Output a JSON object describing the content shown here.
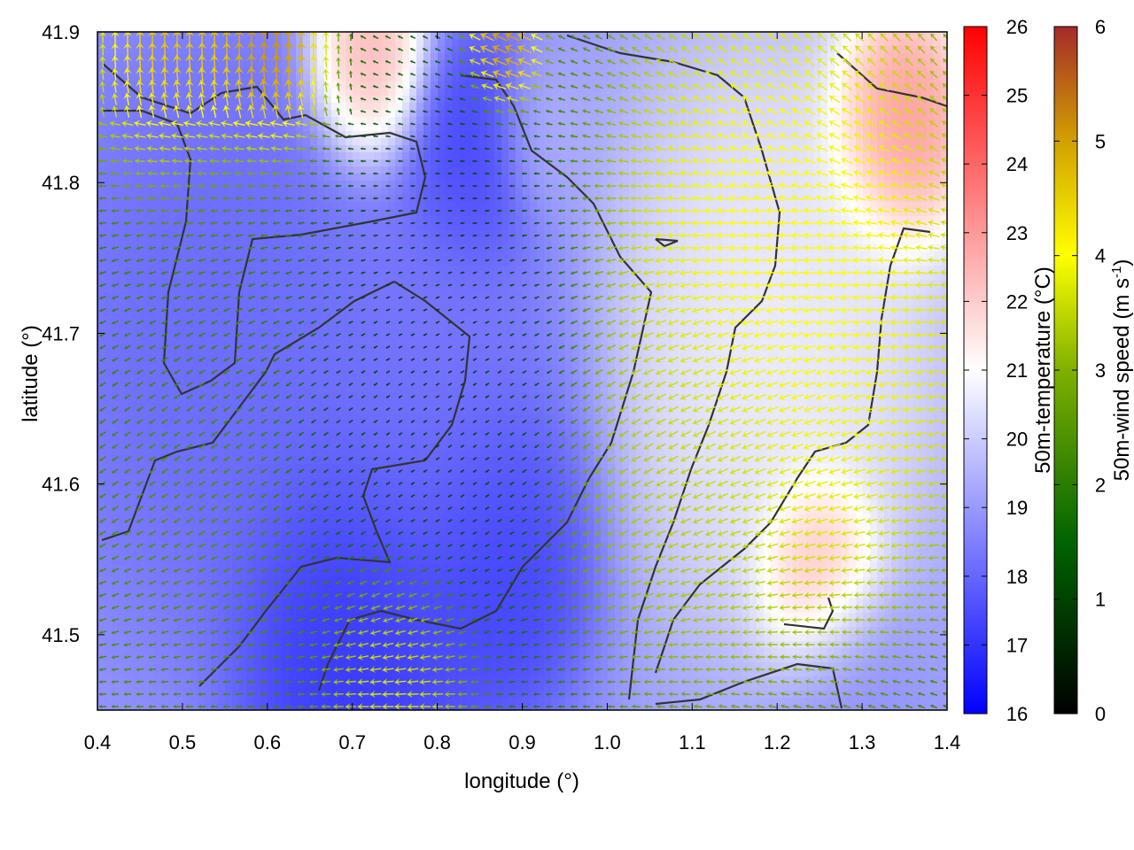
{
  "chart_data": {
    "type": "heatmap",
    "title": "",
    "xlabel": "longitude (°)",
    "ylabel": "latitude (°)",
    "xlim": [
      0.4,
      1.4
    ],
    "ylim": [
      41.45,
      41.9
    ],
    "x_ticks": [
      "0.4",
      "0.5",
      "0.6",
      "0.7",
      "0.8",
      "0.9",
      "1.0",
      "1.1",
      "1.2",
      "1.3",
      "1.4"
    ],
    "x_tick_values": [
      0.4,
      0.5,
      0.6,
      0.7,
      0.8,
      0.9,
      1.0,
      1.1,
      1.2,
      1.3,
      1.4
    ],
    "y_ticks": [
      "41.5",
      "41.6",
      "41.7",
      "41.8",
      "41.9"
    ],
    "y_tick_values": [
      41.5,
      41.6,
      41.7,
      41.8,
      41.9
    ],
    "grid": false,
    "temperature_colorbar": {
      "label": "50m-temperature (°C)",
      "range": [
        16,
        26
      ],
      "ticks": [
        "16",
        "17",
        "18",
        "19",
        "20",
        "21",
        "22",
        "23",
        "24",
        "25",
        "26"
      ],
      "colors": [
        "#0000ff",
        "#ffffff",
        "#ff0000"
      ]
    },
    "wind_colorbar": {
      "label_main": "50m-wind speed (m s",
      "label_sup": "-1",
      "label_close": ")",
      "range": [
        0,
        6
      ],
      "ticks": [
        "0",
        "1",
        "2",
        "3",
        "4",
        "5",
        "6"
      ],
      "colors": [
        "#000000",
        "#006400",
        "#7fb000",
        "#ffff00",
        "#d2a000",
        "#a52a2a"
      ]
    },
    "temperature_features": [
      {
        "lon": 0.55,
        "lat": 41.7,
        "temp": 18.0,
        "radius": 0.15
      },
      {
        "lon": 0.7,
        "lat": 41.5,
        "temp": 16.8,
        "radius": 0.1
      },
      {
        "lon": 0.87,
        "lat": 41.55,
        "temp": 17.0,
        "radius": 0.08
      },
      {
        "lon": 0.84,
        "lat": 41.82,
        "temp": 17.2,
        "radius": 0.06
      },
      {
        "lon": 0.8,
        "lat": 41.65,
        "temp": 18.2,
        "radius": 0.12
      },
      {
        "lon": 1.2,
        "lat": 41.7,
        "temp": 20.8,
        "radius": 0.14
      },
      {
        "lon": 1.25,
        "lat": 41.54,
        "temp": 23.0,
        "radius": 0.05
      },
      {
        "lon": 1.35,
        "lat": 41.84,
        "temp": 23.5,
        "radius": 0.06
      },
      {
        "lon": 0.72,
        "lat": 41.88,
        "temp": 23.0,
        "radius": 0.05
      },
      {
        "lon": 1.28,
        "lat": 41.47,
        "temp": 18.8,
        "radius": 0.06
      },
      {
        "lon": 0.92,
        "lat": 41.83,
        "temp": 19.5,
        "radius": 0.04
      }
    ],
    "wind_features": [
      {
        "lon": 0.6,
        "lat": 41.88,
        "speed": 5.8,
        "radius": 0.05
      },
      {
        "lon": 0.5,
        "lat": 41.89,
        "speed": 5.0,
        "radius": 0.07
      },
      {
        "lon": 0.88,
        "lat": 41.89,
        "speed": 5.5,
        "radius": 0.03
      },
      {
        "lon": 1.2,
        "lat": 41.75,
        "speed": 4.0,
        "radius": 0.15
      },
      {
        "lon": 1.28,
        "lat": 41.68,
        "speed": 3.6,
        "radius": 0.12
      },
      {
        "lon": 1.1,
        "lat": 41.6,
        "speed": 3.0,
        "radius": 0.1
      },
      {
        "lon": 0.75,
        "lat": 41.46,
        "speed": 3.5,
        "radius": 0.06
      },
      {
        "lon": 0.5,
        "lat": 41.55,
        "speed": 2.0,
        "radius": 0.1
      },
      {
        "lon": 0.55,
        "lat": 41.75,
        "speed": 1.8,
        "radius": 0.1
      },
      {
        "lon": 0.8,
        "lat": 41.7,
        "speed": 0.6,
        "radius": 0.12
      }
    ]
  }
}
